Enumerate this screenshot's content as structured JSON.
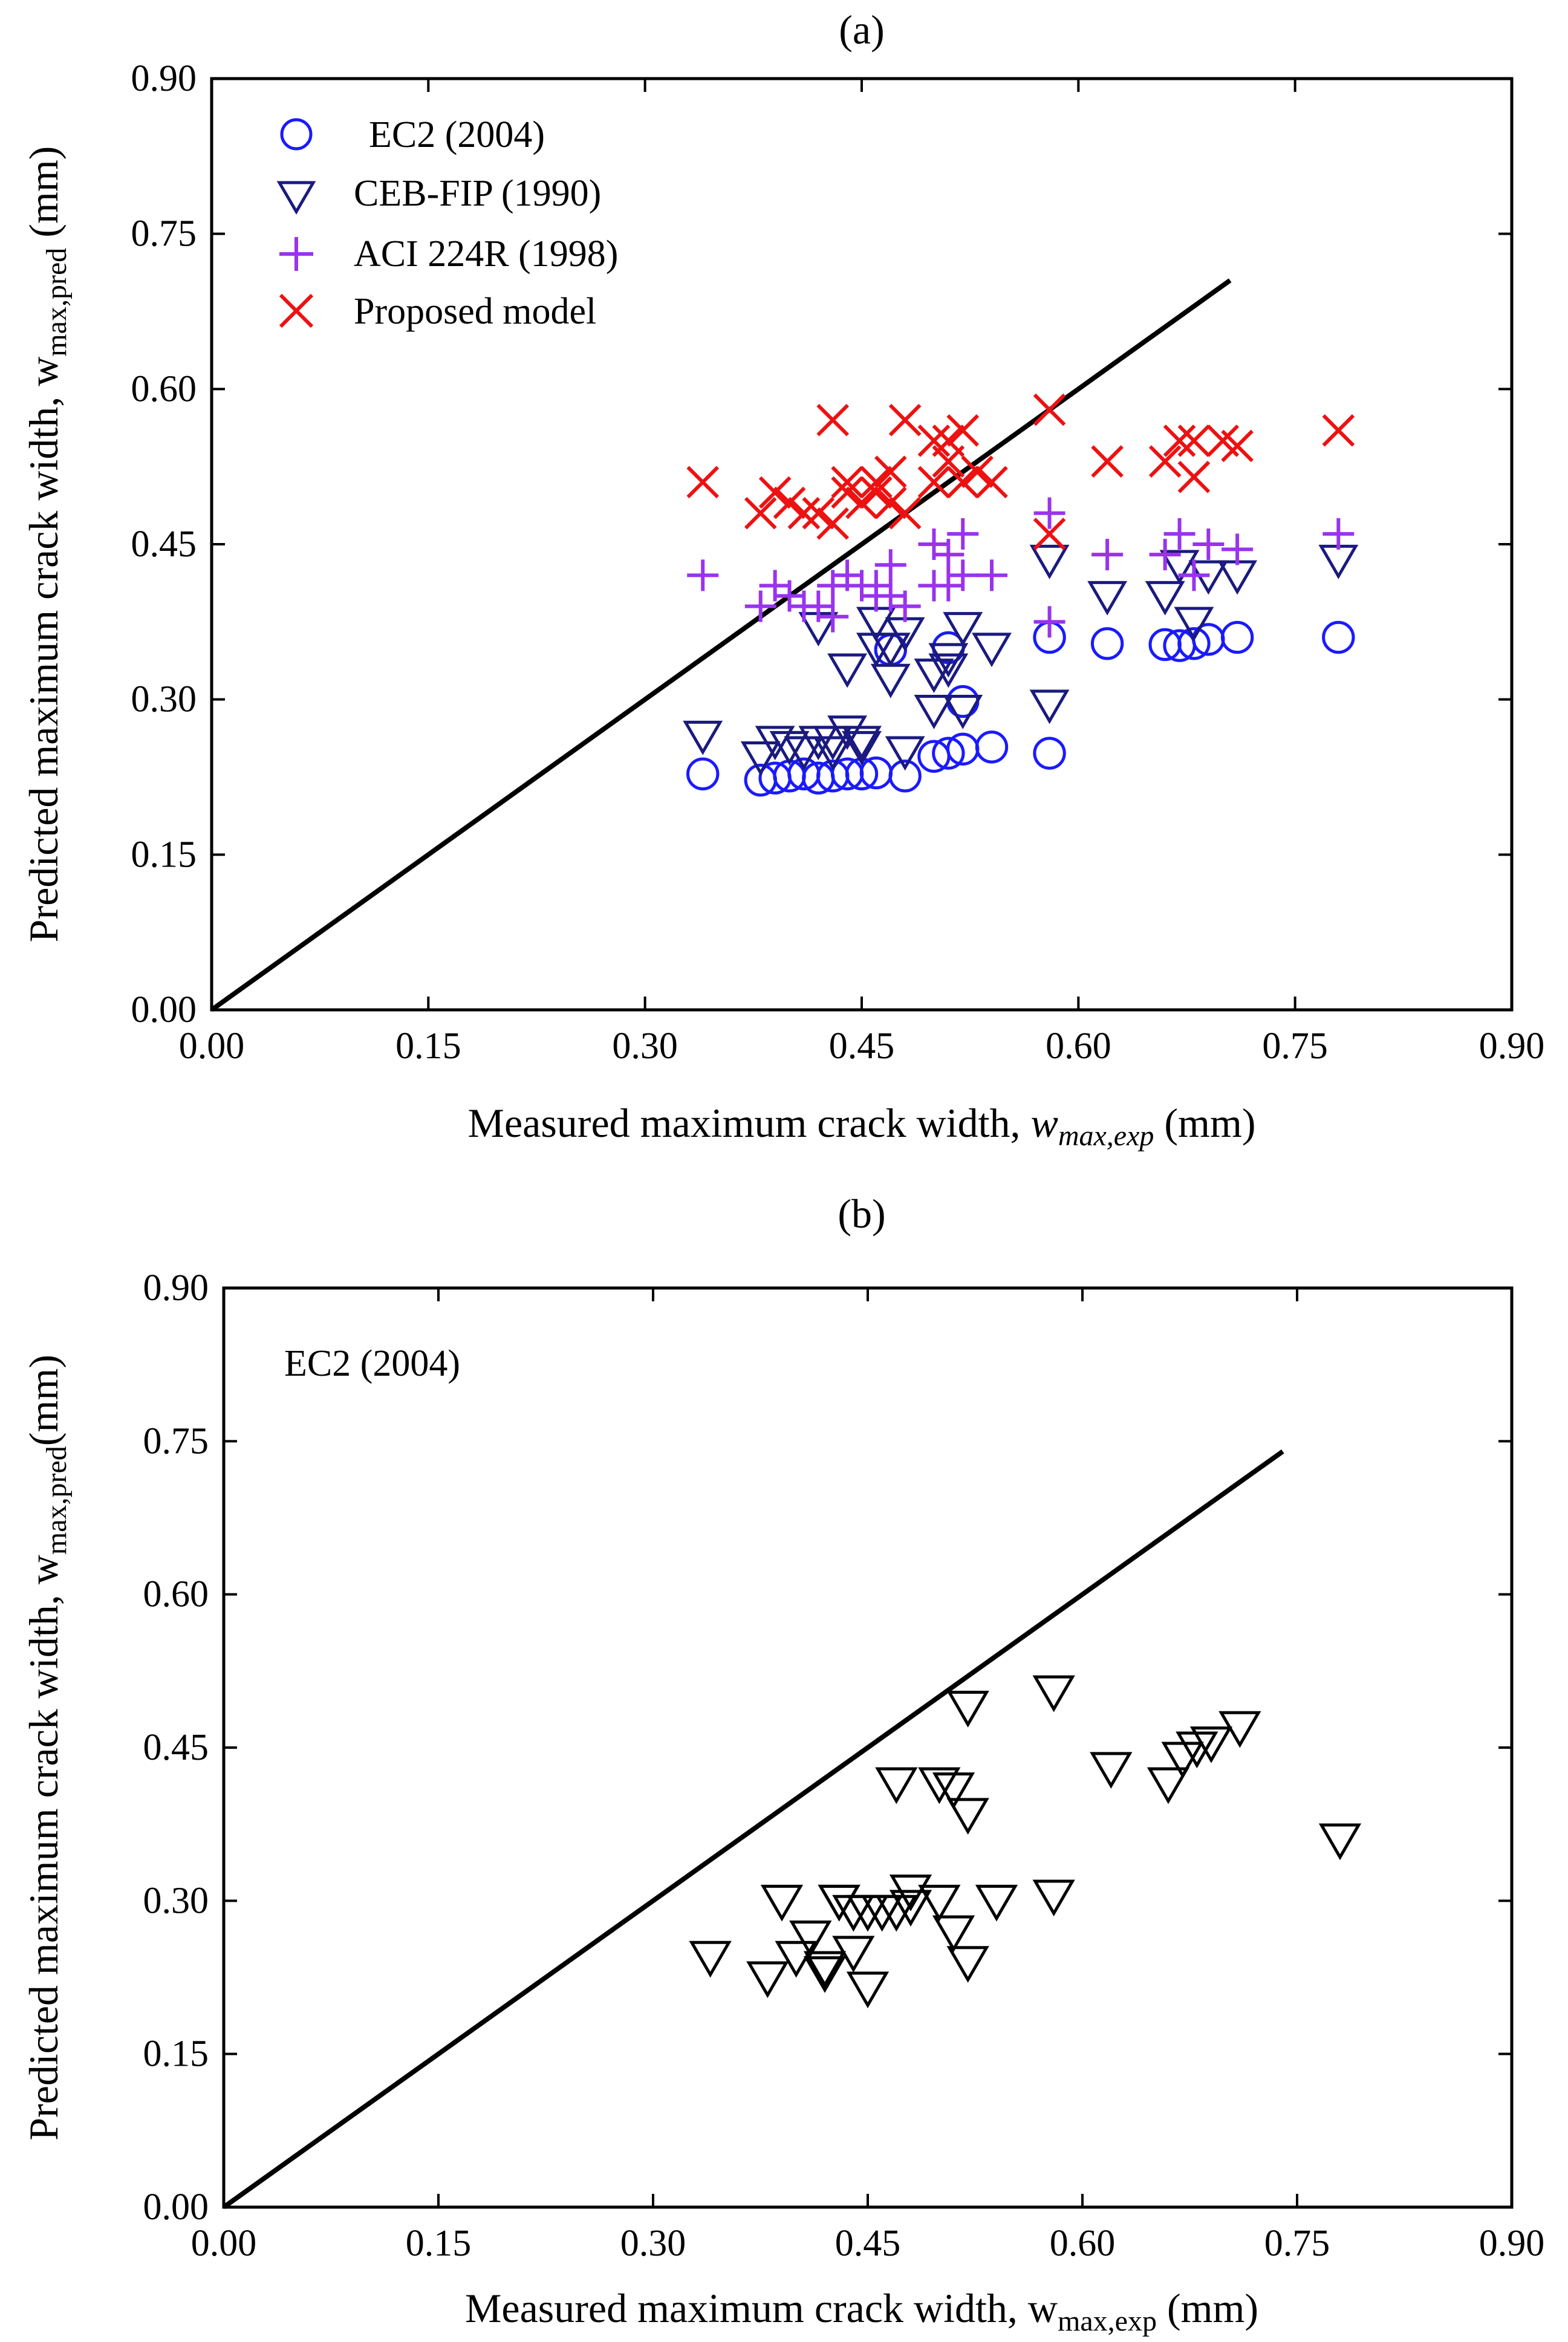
{
  "chart_data": [
    {
      "type": "scatter",
      "panel_label": "(a)",
      "xlabel_main": "Measured maximum crack width, ",
      "xlabel_var": "w",
      "xlabel_sub": "max,exp",
      "xlabel_unit": " (mm)",
      "ylabel_main": "Predicted maximum crack width, w",
      "ylabel_sub": "max,pred",
      "ylabel_unit": " (mm)",
      "xlim": [
        0,
        0.9
      ],
      "ylim": [
        0,
        0.9
      ],
      "xticks": [
        "0.00",
        "0.15",
        "0.30",
        "0.45",
        "0.60",
        "0.75",
        "0.90"
      ],
      "yticks": [
        "0.00",
        "0.15",
        "0.30",
        "0.45",
        "0.60",
        "0.75",
        "0.90"
      ],
      "legend_position": "top-left",
      "reference_line": {
        "x": [
          0,
          0.705
        ],
        "y": [
          0,
          0.705
        ]
      },
      "series": [
        {
          "name": "EC2 (2004)",
          "marker": "circle",
          "color": "#1a1aff",
          "x": [
            0.34,
            0.38,
            0.39,
            0.4,
            0.41,
            0.42,
            0.43,
            0.44,
            0.45,
            0.46,
            0.47,
            0.48,
            0.5,
            0.51,
            0.51,
            0.52,
            0.52,
            0.54,
            0.58,
            0.58,
            0.62,
            0.66,
            0.67,
            0.68,
            0.69,
            0.71,
            0.78
          ],
          "y": [
            0.228,
            0.222,
            0.224,
            0.226,
            0.228,
            0.224,
            0.226,
            0.228,
            0.228,
            0.229,
            0.348,
            0.226,
            0.245,
            0.35,
            0.248,
            0.298,
            0.252,
            0.254,
            0.36,
            0.248,
            0.354,
            0.353,
            0.352,
            0.354,
            0.358,
            0.36,
            0.36
          ]
        },
        {
          "name": "CEB-FIP (1990)",
          "marker": "triangle-down",
          "color": "#1a1a80",
          "x": [
            0.34,
            0.38,
            0.39,
            0.4,
            0.41,
            0.42,
            0.42,
            0.43,
            0.43,
            0.44,
            0.44,
            0.45,
            0.45,
            0.46,
            0.46,
            0.47,
            0.47,
            0.48,
            0.48,
            0.5,
            0.5,
            0.51,
            0.51,
            0.52,
            0.52,
            0.54,
            0.58,
            0.58,
            0.62,
            0.66,
            0.67,
            0.68,
            0.69,
            0.71,
            0.78
          ],
          "y": [
            0.265,
            0.245,
            0.26,
            0.255,
            0.25,
            0.26,
            0.37,
            0.25,
            0.26,
            0.27,
            0.33,
            0.255,
            0.26,
            0.375,
            0.35,
            0.32,
            0.35,
            0.365,
            0.25,
            0.29,
            0.325,
            0.34,
            0.33,
            0.37,
            0.29,
            0.35,
            0.435,
            0.295,
            0.4,
            0.4,
            0.43,
            0.375,
            0.42,
            0.42,
            0.435
          ]
        },
        {
          "name": "ACI 224R (1998)",
          "marker": "plus",
          "color": "#9933ee",
          "x": [
            0.34,
            0.38,
            0.39,
            0.4,
            0.41,
            0.42,
            0.43,
            0.43,
            0.44,
            0.45,
            0.46,
            0.46,
            0.47,
            0.47,
            0.48,
            0.5,
            0.5,
            0.51,
            0.51,
            0.52,
            0.52,
            0.54,
            0.58,
            0.58,
            0.62,
            0.66,
            0.67,
            0.68,
            0.69,
            0.71,
            0.78
          ],
          "y": [
            0.42,
            0.39,
            0.41,
            0.4,
            0.39,
            0.39,
            0.38,
            0.41,
            0.42,
            0.41,
            0.4,
            0.41,
            0.43,
            0.4,
            0.39,
            0.41,
            0.45,
            0.41,
            0.44,
            0.42,
            0.46,
            0.42,
            0.48,
            0.375,
            0.44,
            0.44,
            0.46,
            0.42,
            0.45,
            0.445,
            0.46
          ]
        },
        {
          "name": "Proposed model",
          "marker": "x",
          "color": "#ee1111",
          "x": [
            0.34,
            0.38,
            0.39,
            0.4,
            0.41,
            0.42,
            0.43,
            0.43,
            0.44,
            0.44,
            0.45,
            0.46,
            0.46,
            0.47,
            0.47,
            0.48,
            0.48,
            0.5,
            0.5,
            0.51,
            0.51,
            0.52,
            0.52,
            0.53,
            0.54,
            0.58,
            0.58,
            0.62,
            0.66,
            0.67,
            0.68,
            0.68,
            0.7,
            0.71,
            0.78
          ],
          "y": [
            0.51,
            0.48,
            0.5,
            0.49,
            0.48,
            0.48,
            0.57,
            0.47,
            0.5,
            0.51,
            0.49,
            0.51,
            0.5,
            0.52,
            0.49,
            0.57,
            0.48,
            0.55,
            0.51,
            0.55,
            0.53,
            0.56,
            0.51,
            0.52,
            0.51,
            0.58,
            0.46,
            0.53,
            0.53,
            0.55,
            0.55,
            0.515,
            0.55,
            0.545,
            0.56
          ]
        }
      ]
    },
    {
      "type": "scatter",
      "panel_label": "(b)",
      "annotation": "EC2 (2004)",
      "xlabel_main": "Measured maximum crack width, w",
      "xlabel_var": "",
      "xlabel_sub": "max,exp",
      "xlabel_unit": " (mm)",
      "ylabel_main": "Predicted maximum crack width, w",
      "ylabel_sub": "max,pred",
      "ylabel_unit": "(mm)",
      "xlim": [
        0,
        0.9
      ],
      "ylim": [
        0,
        0.9
      ],
      "xticks": [
        "0.00",
        "0.15",
        "0.30",
        "0.45",
        "0.60",
        "0.75",
        "0.90"
      ],
      "yticks": [
        "0.00",
        "0.15",
        "0.30",
        "0.45",
        "0.60",
        "0.75",
        "0.90"
      ],
      "reference_line": {
        "x": [
          0,
          0.74
        ],
        "y": [
          0,
          0.74
        ]
      },
      "series": [
        {
          "marker": "triangle-down",
          "color": "#000000",
          "x": [
            0.34,
            0.38,
            0.39,
            0.4,
            0.41,
            0.42,
            0.42,
            0.43,
            0.43,
            0.44,
            0.44,
            0.45,
            0.45,
            0.46,
            0.47,
            0.47,
            0.48,
            0.48,
            0.5,
            0.5,
            0.51,
            0.51,
            0.52,
            0.52,
            0.52,
            0.54,
            0.58,
            0.58,
            0.62,
            0.66,
            0.67,
            0.68,
            0.69,
            0.71,
            0.78
          ],
          "y": [
            0.245,
            0.225,
            0.3,
            0.245,
            0.265,
            0.235,
            0.23,
            0.3,
            0.3,
            0.29,
            0.25,
            0.215,
            0.29,
            0.29,
            0.415,
            0.29,
            0.31,
            0.295,
            0.415,
            0.3,
            0.27,
            0.41,
            0.49,
            0.385,
            0.24,
            0.3,
            0.505,
            0.305,
            0.43,
            0.415,
            0.44,
            0.45,
            0.455,
            0.47,
            0.36
          ]
        }
      ]
    }
  ]
}
